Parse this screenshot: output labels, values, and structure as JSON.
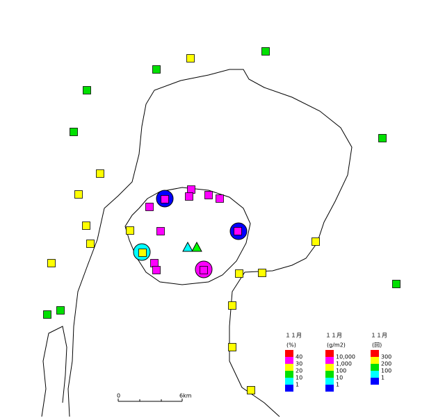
{
  "legends": [
    {
      "title": "１１月",
      "unit": "(%)",
      "labels": [
        "40",
        "30",
        "20",
        "10",
        "1"
      ]
    },
    {
      "title": "１１月",
      "unit": "(g/m2)",
      "labels": [
        "10,000",
        "1,000",
        "100",
        "10",
        "1"
      ]
    },
    {
      "title": "１１月",
      "unit": "(回)",
      "labels": [
        "300",
        "200",
        "100",
        "1"
      ]
    }
  ],
  "scale_bar": {
    "labels": [
      "0",
      "6km"
    ]
  }
}
